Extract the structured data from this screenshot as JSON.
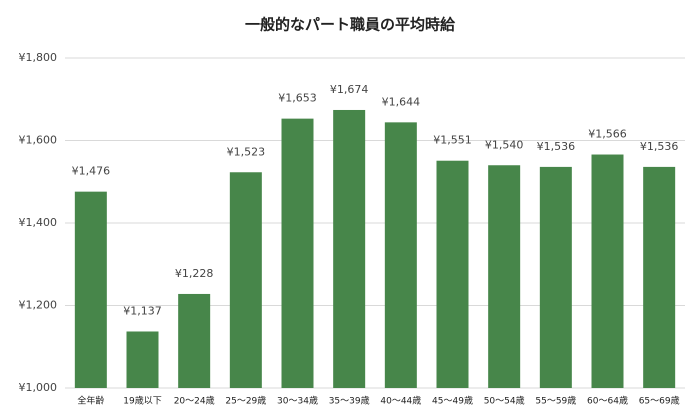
{
  "chart_data": {
    "type": "bar",
    "title": "一般的なパート職員の平均時給",
    "categories": [
      "全年齢",
      "19歳以下",
      "20～24歳",
      "25～29歳",
      "30～34歳",
      "35～39歳",
      "40～44歳",
      "45～49歳",
      "50～54歳",
      "55～59歳",
      "60～64歳",
      "65～69歳"
    ],
    "values": [
      1476,
      1137,
      1228,
      1523,
      1653,
      1674,
      1644,
      1551,
      1540,
      1536,
      1566,
      1536
    ],
    "value_labels": [
      "¥1,476",
      "¥1,137",
      "¥1,228",
      "¥1,523",
      "¥1,653",
      "¥1,674",
      "¥1,644",
      "¥1,551",
      "¥1,540",
      "¥1,536",
      "¥1,566",
      "¥1,536"
    ],
    "color": "#47864a",
    "ylim": [
      1000,
      1800
    ],
    "yticks": [
      {
        "value": 1000,
        "label": "¥1,000"
      },
      {
        "value": 1200,
        "label": "¥1,200"
      },
      {
        "value": 1400,
        "label": "¥1,400"
      },
      {
        "value": 1600,
        "label": "¥1,600"
      },
      {
        "value": 1800,
        "label": "¥1,800"
      }
    ],
    "grid": true
  }
}
